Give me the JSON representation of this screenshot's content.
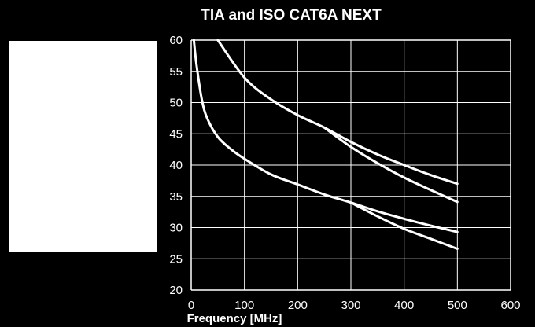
{
  "chart_data": {
    "type": "line",
    "title": "TIA and ISO CAT6A NEXT",
    "xlabel": "Frequency [MHz]",
    "ylabel": "",
    "xlim": [
      0,
      600
    ],
    "ylim": [
      20,
      60
    ],
    "xticks": [
      0,
      100,
      200,
      300,
      400,
      500,
      600
    ],
    "yticks": [
      20,
      25,
      30,
      35,
      40,
      45,
      50,
      55,
      60
    ],
    "grid": true,
    "colors": {
      "background": "#000000",
      "grid": "#ffffff",
      "series": "#ffffff",
      "panel": "#ffffff"
    },
    "series": [
      {
        "x": [
          50,
          100,
          150,
          200,
          250,
          300,
          350,
          400,
          450,
          500
        ],
        "y": [
          60.0,
          54.0,
          50.5,
          48.0,
          46.0,
          43.7,
          41.7,
          40.0,
          38.4,
          37.0
        ]
      },
      {
        "x": [
          250,
          300,
          350,
          400,
          450,
          500
        ],
        "y": [
          46.0,
          42.9,
          40.3,
          38.0,
          36.0,
          34.1
        ]
      },
      {
        "x": [
          5,
          10,
          20,
          30,
          50,
          75,
          100,
          150,
          200,
          250,
          300,
          350,
          400,
          450,
          500
        ],
        "y": [
          60.0,
          56.0,
          50.5,
          47.5,
          44.5,
          42.5,
          41.0,
          38.5,
          36.9,
          35.3,
          34.0,
          32.6,
          31.4,
          30.3,
          29.3
        ]
      },
      {
        "x": [
          300,
          350,
          400,
          450,
          500
        ],
        "y": [
          34.0,
          31.8,
          29.8,
          28.2,
          26.6
        ]
      }
    ]
  }
}
